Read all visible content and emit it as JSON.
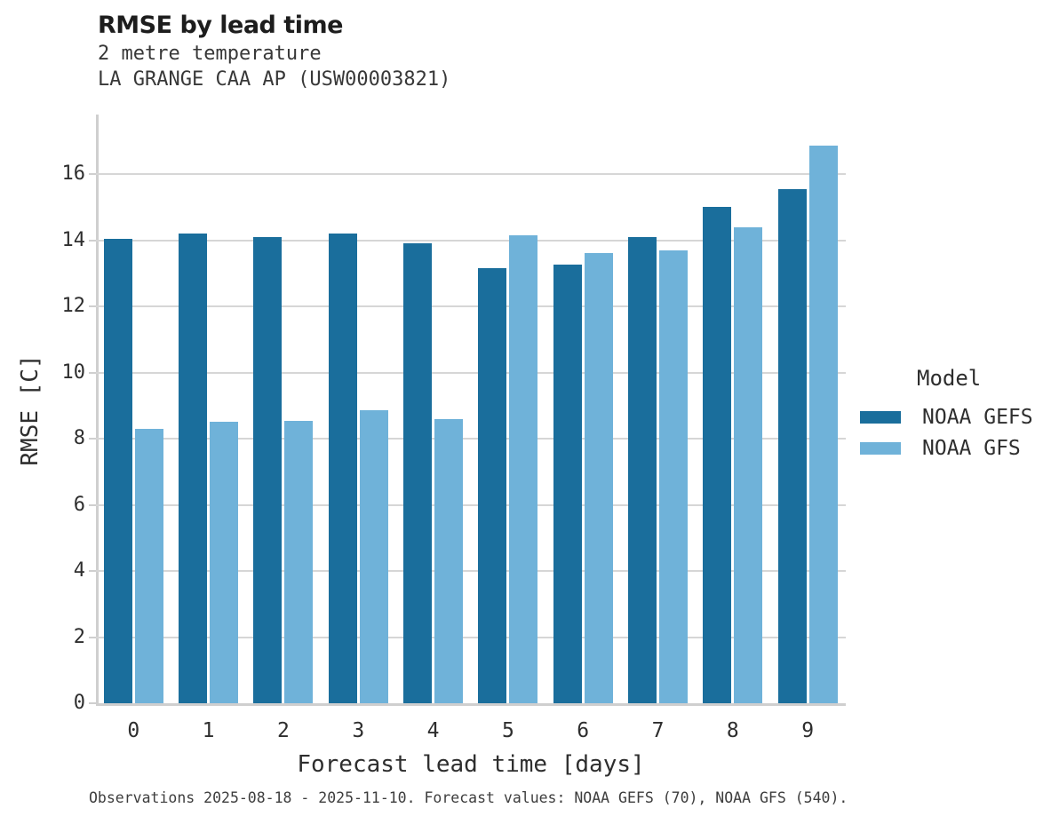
{
  "header": {
    "title": "RMSE by lead time",
    "subtitle1": "2 metre temperature",
    "subtitle2": "LA GRANGE CAA AP (USW00003821)"
  },
  "chart_data": {
    "type": "bar",
    "title": "RMSE by lead time",
    "subtitle": [
      "2 metre temperature",
      "LA GRANGE CAA AP (USW00003821)"
    ],
    "categories": [
      "0",
      "1",
      "2",
      "3",
      "4",
      "5",
      "6",
      "7",
      "8",
      "9"
    ],
    "series": [
      {
        "name": "NOAA GEFS",
        "color": "#1a6e9c",
        "values": [
          14.05,
          14.2,
          14.1,
          14.2,
          13.9,
          13.15,
          13.25,
          14.1,
          15.0,
          15.55
        ]
      },
      {
        "name": "NOAA GFS",
        "color": "#6fb2d9",
        "values": [
          8.3,
          8.5,
          8.55,
          8.85,
          8.6,
          14.15,
          13.6,
          13.7,
          14.4,
          16.85
        ]
      }
    ],
    "xlabel": "Forecast lead time [days]",
    "ylabel": "RMSE [C]",
    "ylim": [
      0,
      17.8
    ],
    "yticks": [
      0,
      2,
      4,
      6,
      8,
      10,
      12,
      14,
      16
    ],
    "grid": "horizontal",
    "legend_title": "Model",
    "legend_position": "right"
  },
  "footer": {
    "text": "Observations 2025-08-18 - 2025-11-10. Forecast values: NOAA GEFS (70), NOAA GFS (540)."
  },
  "colors": {
    "gridline": "#d6d6d6",
    "axis_spine": "#cfcfcf",
    "title_text": "#1d1d1d",
    "subtitle_text": "#383838",
    "axis_text": "#2e2e2e",
    "footer_text": "#3d3d3d",
    "background": "#ffffff"
  }
}
